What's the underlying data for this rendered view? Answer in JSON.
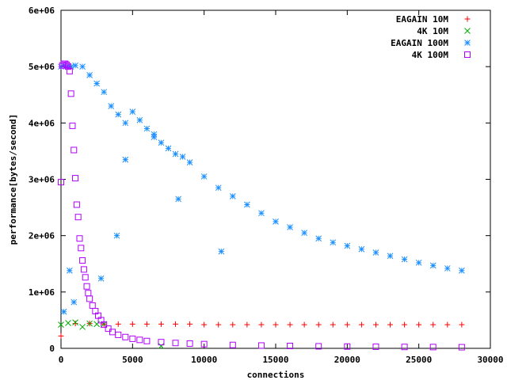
{
  "chart_data": {
    "type": "scatter",
    "title": "",
    "xlabel": "connections",
    "ylabel": "performance[bytes/second]",
    "xlim": [
      0,
      30000
    ],
    "ylim": [
      0,
      6000000
    ],
    "x_ticks": [
      0,
      5000,
      10000,
      15000,
      20000,
      25000,
      30000
    ],
    "x_tick_labels": [
      "0",
      "5000",
      "10000",
      "15000",
      "20000",
      "25000",
      "30000"
    ],
    "y_ticks": [
      0,
      1000000,
      2000000,
      3000000,
      4000000,
      5000000,
      6000000
    ],
    "y_tick_labels": [
      "0",
      "1e+06",
      "2e+06",
      "3e+06",
      "4e+06",
      "5e+06",
      "6e+06"
    ],
    "grid": false,
    "legend_position": "top-right",
    "series": [
      {
        "name": "EAGAIN 10M",
        "color": "#ff0000",
        "marker": "plus",
        "x": [
          0,
          1000,
          2000,
          3000,
          4000,
          5000,
          6000,
          7000,
          8000,
          9000,
          10000,
          11000,
          12000,
          13000,
          14000,
          15000,
          16000,
          17000,
          18000,
          19000,
          20000,
          21000,
          22000,
          23000,
          24000,
          25000,
          26000,
          27000,
          28000
        ],
        "y": [
          220000,
          440000,
          440000,
          430000,
          430000,
          430000,
          430000,
          430000,
          430000,
          430000,
          420000,
          420000,
          420000,
          420000,
          420000,
          420000,
          420000,
          420000,
          420000,
          420000,
          420000,
          420000,
          420000,
          420000,
          420000,
          420000,
          420000,
          420000,
          420000
        ]
      },
      {
        "name": "4K 10M",
        "color": "#00aa00",
        "marker": "cross",
        "x": [
          0,
          500,
          1000,
          1500,
          2000,
          2500,
          3000,
          7000
        ],
        "y": [
          420000,
          450000,
          460000,
          380000,
          440000,
          430000,
          430000,
          40000
        ]
      },
      {
        "name": "EAGAIN 100M",
        "color": "#1e90ff",
        "marker": "star",
        "x": [
          0,
          200,
          500,
          700,
          1000,
          1500,
          2000,
          2500,
          3000,
          3500,
          4000,
          4500,
          5000,
          5500,
          6000,
          6500,
          7000,
          7500,
          8000,
          8500,
          9000,
          10000,
          11000,
          12000,
          13000,
          14000,
          15000,
          16000,
          17000,
          18000,
          19000,
          20000,
          21000,
          22000,
          23000,
          24000,
          25000,
          26000,
          27000,
          28000,
          200,
          600,
          900,
          2800,
          3900,
          4500,
          6500,
          8200,
          11200
        ],
        "y": [
          5000000,
          5020000,
          5010000,
          5000000,
          5020000,
          5000000,
          4850000,
          4700000,
          4550000,
          4300000,
          4150000,
          4000000,
          4200000,
          4050000,
          3900000,
          3750000,
          3650000,
          3550000,
          3450000,
          3400000,
          3300000,
          3050000,
          2850000,
          2700000,
          2550000,
          2400000,
          2250000,
          2150000,
          2050000,
          1950000,
          1880000,
          1820000,
          1760000,
          1700000,
          1640000,
          1580000,
          1520000,
          1470000,
          1420000,
          1380000,
          650000,
          1380000,
          820000,
          1240000,
          2000000,
          3350000,
          3800000,
          2650000,
          1720000
        ]
      },
      {
        "name": "4K 100M",
        "color": "#b000ff",
        "marker": "square",
        "x": [
          0,
          100,
          200,
          300,
          400,
          500,
          600,
          700,
          800,
          900,
          1000,
          1100,
          1200,
          1300,
          1400,
          1500,
          1600,
          1700,
          1800,
          1900,
          2000,
          2200,
          2400,
          2600,
          2800,
          3000,
          3300,
          3600,
          4000,
          4500,
          5000,
          5500,
          6000,
          7000,
          8000,
          9000,
          10000,
          12000,
          14000,
          16000,
          18000,
          20000,
          22000,
          24000,
          26000,
          28000
        ],
        "y": [
          2950000,
          5020000,
          5050000,
          5050000,
          5030000,
          5000000,
          4920000,
          4520000,
          3950000,
          3520000,
          3020000,
          2550000,
          2330000,
          1950000,
          1780000,
          1560000,
          1400000,
          1260000,
          1100000,
          980000,
          880000,
          760000,
          660000,
          580000,
          500000,
          420000,
          350000,
          290000,
          240000,
          200000,
          170000,
          150000,
          130000,
          110000,
          95000,
          85000,
          75000,
          60000,
          50000,
          42000,
          36000,
          32000,
          28000,
          25000,
          23000,
          20000
        ]
      }
    ]
  }
}
